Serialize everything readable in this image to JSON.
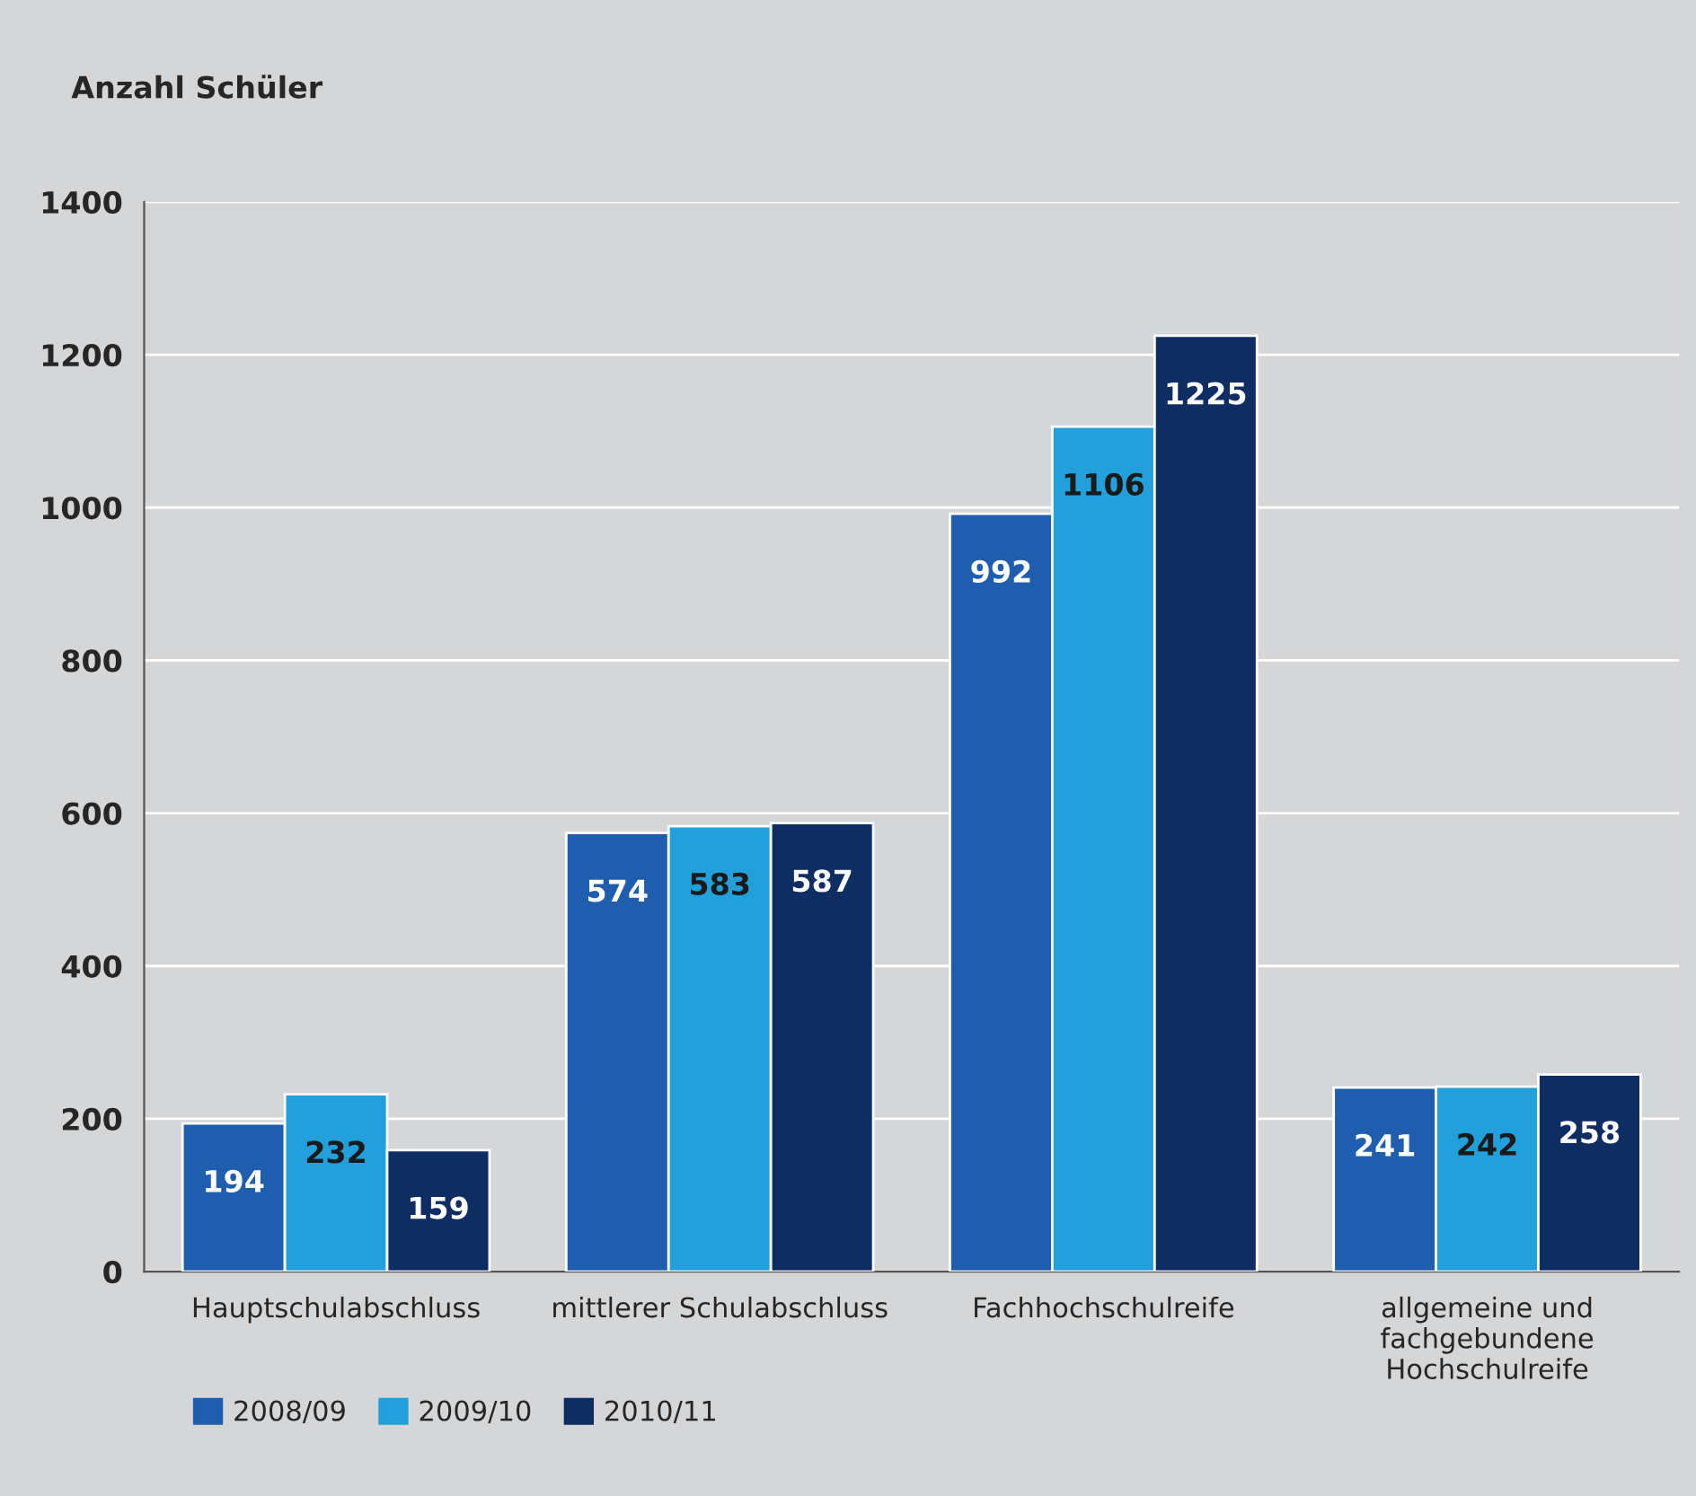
{
  "chart_data": {
    "type": "bar",
    "title": "Anzahl Schüler",
    "categories": [
      "Hauptschulabschluss",
      "mittlerer Schulabschluss",
      "Fachhochschulreife",
      "allgemeine und\nfachgebundene\nHochschulreife"
    ],
    "series": [
      {
        "name": "2008/09",
        "color": "#1f5eae",
        "values": [
          194,
          574,
          992,
          241
        ]
      },
      {
        "name": "2009/10",
        "color": "#21a0db",
        "values": [
          232,
          583,
          1106,
          242
        ]
      },
      {
        "name": "2010/11",
        "color": "#0d2d63",
        "values": [
          159,
          587,
          1225,
          258
        ]
      }
    ],
    "ylim": [
      0,
      1400
    ],
    "yticks": [
      0,
      200,
      400,
      600,
      800,
      1000,
      1200,
      1400
    ],
    "grid": "y",
    "legend": "bottom left",
    "data_labels": true
  }
}
